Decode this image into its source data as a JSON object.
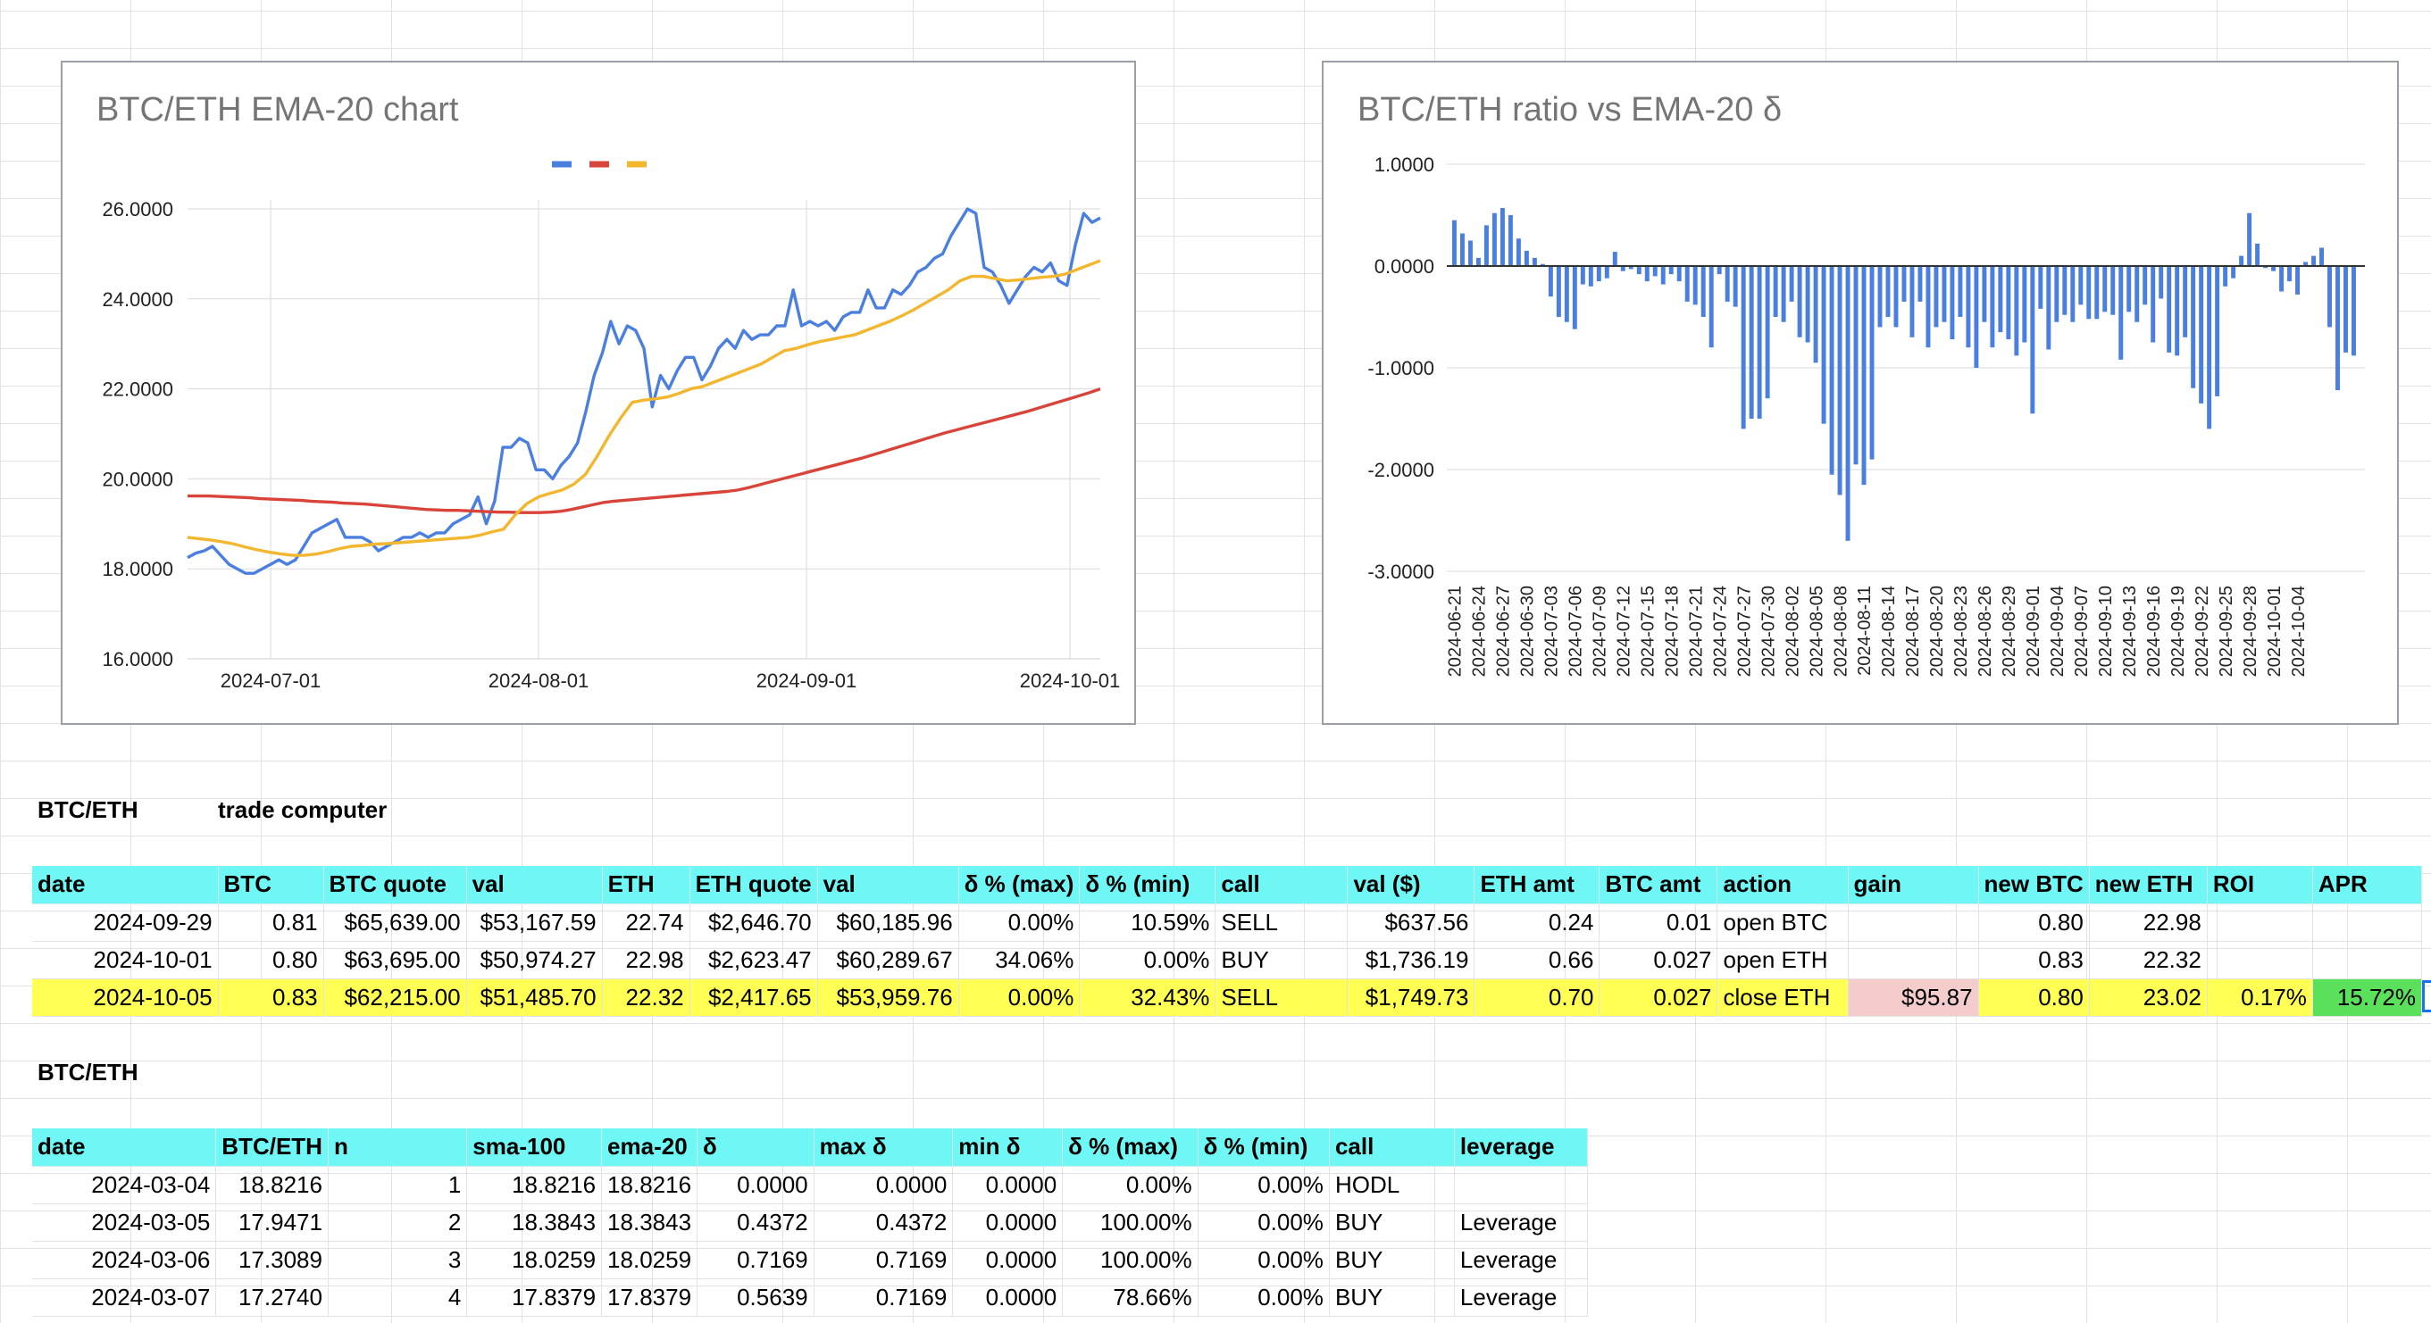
{
  "chart1": {
    "title": "BTC/ETH EMA-20 chart",
    "y_ticks": [
      "26.0000",
      "24.0000",
      "22.0000",
      "20.0000",
      "18.0000",
      "16.0000"
    ],
    "x_ticks": [
      "2024-07-01",
      "2024-08-01",
      "2024-09-01",
      "2024-10-01"
    ],
    "colors": {
      "ratio": "#4a7fe0",
      "sma100": "#d9443a",
      "ema20": "#f3b72f"
    }
  },
  "chart2": {
    "title": "BTC/ETH ratio vs EMA-20 δ",
    "y_ticks": [
      "1.0000",
      "0.0000",
      "-1.0000",
      "-2.0000",
      "-3.0000"
    ],
    "x_ticks": [
      "2024-06-21",
      "2024-06-24",
      "2024-06-27",
      "2024-06-30",
      "2024-07-03",
      "2024-07-06",
      "2024-07-09",
      "2024-07-12",
      "2024-07-15",
      "2024-07-18",
      "2024-07-21",
      "2024-07-24",
      "2024-07-27",
      "2024-07-30",
      "2024-08-02",
      "2024-08-05",
      "2024-08-08",
      "2024-08-11",
      "2024-08-14",
      "2024-08-17",
      "2024-08-20",
      "2024-08-23",
      "2024-08-26",
      "2024-08-29",
      "2024-09-01",
      "2024-09-04",
      "2024-09-07",
      "2024-09-10",
      "2024-09-13",
      "2024-09-16",
      "2024-09-19",
      "2024-09-22",
      "2024-09-25",
      "2024-09-28",
      "2024-10-01",
      "2024-10-04"
    ],
    "bar_color": "#4a7fe0"
  },
  "chart_data": [
    {
      "type": "line",
      "title": "BTC/ETH EMA-20 chart",
      "x_range": [
        "2024-06-21",
        "2024-10-05"
      ],
      "ylim": [
        16,
        26.5
      ],
      "series": [
        {
          "key": "ratio",
          "values": [
            18.25,
            18.35,
            18.4,
            18.5,
            18.3,
            18.1,
            18.0,
            17.9,
            17.9,
            18.0,
            18.1,
            18.2,
            18.1,
            18.2,
            18.5,
            18.8,
            18.9,
            19.0,
            19.1,
            18.7,
            18.7,
            18.7,
            18.6,
            18.4,
            18.5,
            18.6,
            18.7,
            18.7,
            18.8,
            18.7,
            18.8,
            18.8,
            19.0,
            19.1,
            19.2,
            19.6,
            19.0,
            19.5,
            20.7,
            20.7,
            20.9,
            20.8,
            20.2,
            20.2,
            20.0,
            20.3,
            20.5,
            20.8,
            21.5,
            22.3,
            22.8,
            23.5,
            23.0,
            23.4,
            23.3,
            22.9,
            21.6,
            22.3,
            22.0,
            22.4,
            22.7,
            22.7,
            22.2,
            22.5,
            22.9,
            23.1,
            22.9,
            23.3,
            23.1,
            23.2,
            23.2,
            23.4,
            23.4,
            24.2,
            23.4,
            23.5,
            23.4,
            23.5,
            23.3,
            23.6,
            23.7,
            23.7,
            24.2,
            23.8,
            23.8,
            24.2,
            24.1,
            24.3,
            24.6,
            24.7,
            24.9,
            25.0,
            25.4,
            25.7,
            26.0,
            25.9,
            24.7,
            24.6,
            24.3,
            23.9,
            24.2,
            24.5,
            24.7,
            24.6,
            24.8,
            24.4,
            24.3,
            25.2,
            25.9,
            25.7,
            25.8
          ]
        },
        {
          "key": "sma100",
          "values": [
            19.62,
            19.62,
            19.62,
            19.61,
            19.6,
            19.59,
            19.58,
            19.56,
            19.55,
            19.54,
            19.53,
            19.52,
            19.5,
            19.49,
            19.48,
            19.46,
            19.45,
            19.44,
            19.42,
            19.4,
            19.38,
            19.36,
            19.34,
            19.32,
            19.31,
            19.3,
            19.3,
            19.29,
            19.28,
            19.27,
            19.26,
            19.26,
            19.25,
            19.25,
            19.25,
            19.26,
            19.28,
            19.32,
            19.37,
            19.42,
            19.47,
            19.5,
            19.52,
            19.54,
            19.56,
            19.58,
            19.6,
            19.62,
            19.64,
            19.66,
            19.68,
            19.7,
            19.72,
            19.75,
            19.8,
            19.86,
            19.92,
            19.98,
            20.04,
            20.1,
            20.16,
            20.22,
            20.28,
            20.34,
            20.4,
            20.46,
            20.53,
            20.6,
            20.67,
            20.74,
            20.81,
            20.88,
            20.95,
            21.02,
            21.08,
            21.14,
            21.2,
            21.26,
            21.32,
            21.38,
            21.44,
            21.5,
            21.57,
            21.64,
            21.71,
            21.78,
            21.85,
            21.92,
            22.0
          ]
        },
        {
          "key": "ema20",
          "values": [
            18.7,
            18.67,
            18.64,
            18.6,
            18.55,
            18.48,
            18.42,
            18.37,
            18.33,
            18.3,
            18.3,
            18.33,
            18.38,
            18.45,
            18.5,
            18.52,
            18.55,
            18.56,
            18.58,
            18.6,
            18.62,
            18.64,
            18.66,
            18.68,
            18.7,
            18.75,
            18.82,
            18.88,
            19.2,
            19.45,
            19.6,
            19.68,
            19.75,
            19.88,
            20.1,
            20.5,
            20.95,
            21.35,
            21.7,
            21.75,
            21.78,
            21.82,
            21.9,
            22.0,
            22.05,
            22.15,
            22.25,
            22.35,
            22.45,
            22.55,
            22.7,
            22.85,
            22.9,
            22.98,
            23.05,
            23.1,
            23.15,
            23.2,
            23.3,
            23.4,
            23.5,
            23.62,
            23.75,
            23.9,
            24.05,
            24.2,
            24.4,
            24.5,
            24.5,
            24.45,
            24.4,
            24.42,
            24.45,
            24.48,
            24.5,
            24.55,
            24.65,
            24.75,
            24.85
          ]
        }
      ]
    },
    {
      "type": "bar",
      "title": "BTC/ETH ratio vs EMA-20 δ",
      "ylim": [
        -3,
        1
      ],
      "categories_start": "2024-06-21",
      "categories_end": "2024-10-05",
      "values": [
        0.45,
        0.32,
        0.25,
        0.08,
        0.4,
        0.52,
        0.57,
        0.5,
        0.27,
        0.15,
        0.08,
        0.02,
        -0.3,
        -0.5,
        -0.55,
        -0.62,
        -0.18,
        -0.2,
        -0.15,
        -0.12,
        0.14,
        -0.05,
        -0.03,
        -0.08,
        -0.15,
        -0.1,
        -0.18,
        -0.08,
        -0.15,
        -0.35,
        -0.38,
        -0.5,
        -0.8,
        -0.08,
        -0.35,
        -0.4,
        -1.6,
        -1.5,
        -1.5,
        -1.3,
        -0.5,
        -0.55,
        -0.35,
        -0.7,
        -0.75,
        -0.95,
        -1.55,
        -2.05,
        -2.25,
        -2.7,
        -1.95,
        -2.15,
        -1.9,
        -0.6,
        -0.5,
        -0.6,
        -0.35,
        -0.7,
        -0.35,
        -0.8,
        -0.6,
        -0.55,
        -0.72,
        -0.5,
        -0.8,
        -1.0,
        -0.55,
        -0.8,
        -0.65,
        -0.72,
        -0.88,
        -0.75,
        -1.45,
        -0.42,
        -0.82,
        -0.55,
        -0.48,
        -0.55,
        -0.38,
        -0.52,
        -0.52,
        -0.45,
        -0.48,
        -0.92,
        -0.45,
        -0.55,
        -0.38,
        -0.75,
        -0.32,
        -0.85,
        -0.88,
        -0.7,
        -1.2,
        -1.35,
        -1.6,
        -1.28,
        -0.2,
        -0.12,
        0.1,
        0.52,
        0.22,
        -0.02,
        -0.05,
        -0.25,
        -0.15,
        -0.28,
        0.04,
        0.1,
        0.18,
        -0.6,
        -1.22,
        -0.85,
        -0.88
      ]
    }
  ],
  "section1": {
    "label": "BTC/ETH",
    "sublabel": "trade computer"
  },
  "trade_table": {
    "headers": [
      "date",
      "BTC",
      "BTC quote",
      "val",
      "ETH",
      "ETH quote",
      "val",
      "δ % (max)",
      "δ % (min)",
      "call",
      "val ($)",
      "ETH amt",
      "BTC amt",
      "action",
      "gain",
      "new BTC",
      "new ETH",
      "ROI",
      "APR"
    ],
    "rows": [
      [
        "2024-09-29",
        "0.81",
        "$65,639.00",
        "$53,167.59",
        "22.74",
        "$2,646.70",
        "$60,185.96",
        "0.00%",
        "10.59%",
        "SELL",
        "$637.56",
        "0.24",
        "0.01",
        "open BTC",
        "",
        "0.80",
        "22.98",
        "",
        ""
      ],
      [
        "2024-10-01",
        "0.80",
        "$63,695.00",
        "$50,974.27",
        "22.98",
        "$2,623.47",
        "$60,289.67",
        "34.06%",
        "0.00%",
        "BUY",
        "$1,736.19",
        "0.66",
        "0.027",
        "open ETH",
        "",
        "0.83",
        "22.32",
        "",
        ""
      ],
      [
        "2024-10-05",
        "0.83",
        "$62,215.00",
        "$51,485.70",
        "22.32",
        "$2,417.65",
        "$53,959.76",
        "0.00%",
        "32.43%",
        "SELL",
        "$1,749.73",
        "0.70",
        "0.027",
        "close ETH",
        "$95.87",
        "0.80",
        "23.02",
        "0.17%",
        "15.72%"
      ]
    ]
  },
  "section2": {
    "label": "BTC/ETH"
  },
  "data_table": {
    "headers": [
      "date",
      "BTC/ETH",
      "n",
      "sma-100",
      "ema-20",
      "δ",
      "max δ",
      "min δ",
      "δ % (max)",
      "δ % (min)",
      "call",
      "leverage"
    ],
    "rows": [
      [
        "2024-03-04",
        "18.8216",
        "1",
        "18.8216",
        "18.8216",
        "0.0000",
        "0.0000",
        "0.0000",
        "0.00%",
        "0.00%",
        "HODL",
        ""
      ],
      [
        "2024-03-05",
        "17.9471",
        "2",
        "18.3843",
        "18.3843",
        "0.4372",
        "0.4372",
        "0.0000",
        "100.00%",
        "0.00%",
        "BUY",
        "Leverage"
      ],
      [
        "2024-03-06",
        "17.3089",
        "3",
        "18.0259",
        "18.0259",
        "0.7169",
        "0.7169",
        "0.0000",
        "100.00%",
        "0.00%",
        "BUY",
        "Leverage"
      ],
      [
        "2024-03-07",
        "17.2740",
        "4",
        "17.8379",
        "17.8379",
        "0.5639",
        "0.7169",
        "0.0000",
        "78.66%",
        "0.00%",
        "BUY",
        "Leverage"
      ]
    ]
  }
}
